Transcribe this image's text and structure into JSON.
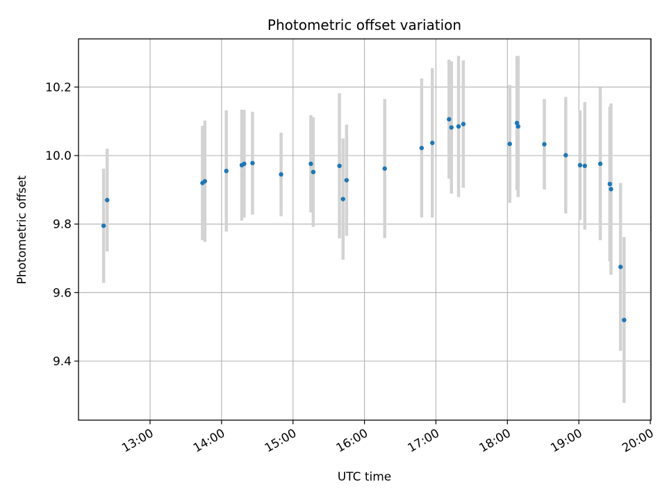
{
  "chart_data": {
    "type": "scatter",
    "title": "Photometric offset variation",
    "xlabel": "UTC time",
    "ylabel": "Photometric offset",
    "x_ticks": [
      "13:00",
      "14:00",
      "15:00",
      "16:00",
      "17:00",
      "18:00",
      "19:00",
      "20:00"
    ],
    "y_ticks": [
      "9.4",
      "9.6",
      "9.8",
      "10.0",
      "10.2"
    ],
    "xlim": [
      "12:00",
      "20:00"
    ],
    "ylim": [
      9.23,
      10.34
    ],
    "grid": true,
    "colors": {
      "point": "#1f77b4",
      "errorbar": "#d3d3d3",
      "grid": "#b0b0b0"
    },
    "points": [
      {
        "x": "12:21",
        "y": 9.795,
        "err": 0.167
      },
      {
        "x": "12:24",
        "y": 9.87,
        "err": 0.15
      },
      {
        "x": "13:44",
        "y": 9.92,
        "err": 0.167
      },
      {
        "x": "13:46",
        "y": 9.925,
        "err": 0.177
      },
      {
        "x": "14:04",
        "y": 9.955,
        "err": 0.177
      },
      {
        "x": "14:17",
        "y": 9.972,
        "err": 0.162
      },
      {
        "x": "14:19",
        "y": 9.976,
        "err": 0.157
      },
      {
        "x": "14:26",
        "y": 9.978,
        "err": 0.15
      },
      {
        "x": "14:50",
        "y": 9.945,
        "err": 0.122
      },
      {
        "x": "15:15",
        "y": 9.976,
        "err": 0.142
      },
      {
        "x": "15:17",
        "y": 9.952,
        "err": 0.16
      },
      {
        "x": "15:39",
        "y": 9.97,
        "err": 0.212
      },
      {
        "x": "15:42",
        "y": 9.873,
        "err": 0.177
      },
      {
        "x": "15:45",
        "y": 9.928,
        "err": 0.162
      },
      {
        "x": "16:17",
        "y": 9.962,
        "err": 0.203
      },
      {
        "x": "16:48",
        "y": 10.022,
        "err": 0.203
      },
      {
        "x": "16:57",
        "y": 10.037,
        "err": 0.218
      },
      {
        "x": "17:11",
        "y": 10.106,
        "err": 0.174
      },
      {
        "x": "17:13",
        "y": 10.082,
        "err": 0.193
      },
      {
        "x": "17:19",
        "y": 10.085,
        "err": 0.206
      },
      {
        "x": "17:23",
        "y": 10.092,
        "err": 0.186
      },
      {
        "x": "18:02",
        "y": 10.034,
        "err": 0.172
      },
      {
        "x": "18:08",
        "y": 10.095,
        "err": 0.196
      },
      {
        "x": "18:09",
        "y": 10.085,
        "err": 0.206
      },
      {
        "x": "18:31",
        "y": 10.033,
        "err": 0.132
      },
      {
        "x": "18:49",
        "y": 10.001,
        "err": 0.17
      },
      {
        "x": "19:01",
        "y": 9.972,
        "err": 0.16
      },
      {
        "x": "19:05",
        "y": 9.97,
        "err": 0.186
      },
      {
        "x": "19:18",
        "y": 9.976,
        "err": 0.223
      },
      {
        "x": "19:26",
        "y": 9.917,
        "err": 0.226
      },
      {
        "x": "19:27",
        "y": 9.902,
        "err": 0.25
      },
      {
        "x": "19:35",
        "y": 9.675,
        "err": 0.245
      },
      {
        "x": "19:38",
        "y": 9.52,
        "err": 0.242
      }
    ]
  }
}
